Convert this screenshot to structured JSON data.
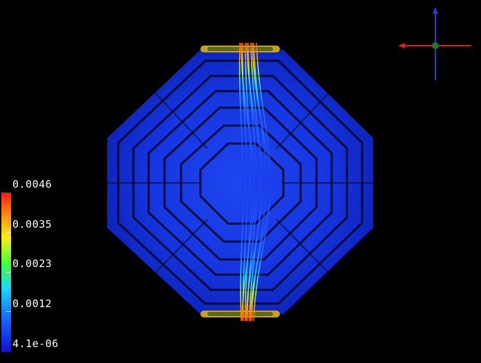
{
  "scene": {
    "background": "#000000",
    "surface_color": "#1432e6",
    "icons": [
      "octagonal-mesh-surface",
      "streamlines",
      "orientation-axes"
    ]
  },
  "axes": {
    "x_color": "#e01a1a",
    "y_color": "#2a3ad8",
    "origin_color": "#1c7a2a"
  },
  "colorbar": {
    "colormap": "jet",
    "labels": [
      "0.0046",
      "0.0035",
      "0.0023",
      "0.0012",
      "4.1e-06"
    ]
  }
}
